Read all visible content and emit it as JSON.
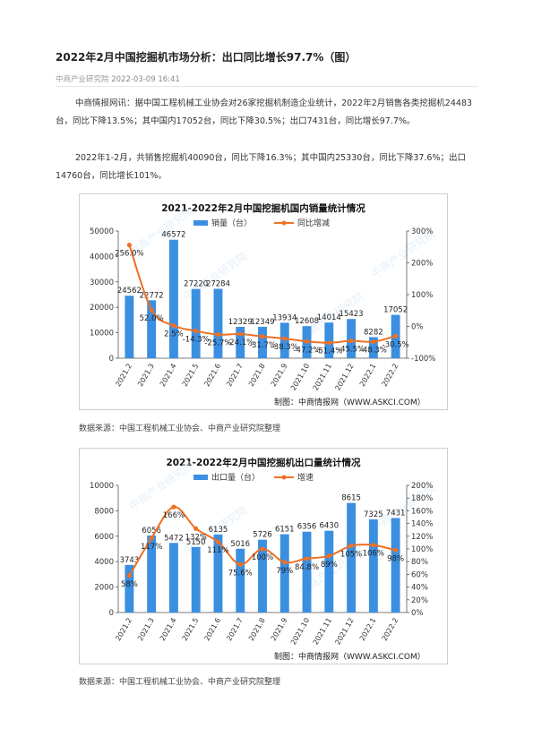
{
  "article": {
    "title": "2022年2月中国挖掘机市场分析：出口同比增长97.7%（图）",
    "source": "中商产业研究院",
    "datetime": "2022-03-09 16:41",
    "paragraphs": [
      "中商情报网讯：据中国工程机械工业协会对26家挖掘机制造企业统计，2022年2月销售各类挖掘机24483台，同比下降13.5%；其中国内17052台，同比下降30.5%；出口7431台，同比增长97.7%。",
      "2022年1-2月，共销售挖掘机40090台，同比下降16.3%；其中国内25330台，同比下降37.6%；出口14760台，同比增长101%。"
    ],
    "captions": [
      "数据来源：中国工程机械工业协会、中商产业研究院整理",
      "数据来源：中国工程机械工业协会、中商产业研究院整理"
    ]
  },
  "chart_data": [
    {
      "type": "bar",
      "title": "2021-2022年2月中国挖掘机国内销量统计情况",
      "categories": [
        "2021.2",
        "2021.3",
        "2021.4",
        "2021.5",
        "2021.6",
        "2021.7",
        "2021.8",
        "2021.9",
        "2021.10",
        "2021.11",
        "2021.12",
        "2022.1",
        "2022.2"
      ],
      "series": [
        {
          "name": "销量（台）",
          "kind": "bar",
          "axis": "left",
          "color": "#3b8fe0",
          "values": [
            24562,
            22772,
            46572,
            27220,
            27284,
            12329,
            12349,
            13934,
            12608,
            14014,
            15423,
            8282,
            17052
          ],
          "labels": [
            "24562",
            "22772",
            "46572",
            "27220",
            "27284",
            "12329",
            "12349",
            "13934",
            "12608",
            "14014",
            "15423",
            "8282",
            "17052"
          ]
        },
        {
          "name": "同比增减",
          "kind": "line",
          "axis": "right",
          "color": "#ef7024",
          "values": [
            256.0,
            52.0,
            2.5,
            -14.3,
            -25.7,
            -24.1,
            -31.7,
            -38.3,
            -47.2,
            -51.4,
            -45.5,
            -48.3,
            -30.5
          ],
          "labels": [
            "256.0%",
            "52.0%",
            "2.5%",
            "-14.3%",
            "-25.7%",
            "-24.1%",
            "-31.7%",
            "-38.3%",
            "-47.2%",
            "-51.4%",
            "-45.5%",
            "-48.3%",
            "-30.5%"
          ]
        }
      ],
      "yticks_left": [
        "0",
        "10000",
        "20000",
        "30000",
        "40000",
        "50000"
      ],
      "yticks_right": [
        "-100%",
        "0%",
        "100%",
        "200%",
        "300%"
      ],
      "ylim_left": [
        0,
        50000
      ],
      "ylim_right": [
        -100,
        300
      ],
      "legend": "top-center",
      "grid": false,
      "footer": "制图：中商情报网（WWW.ASKCI.COM）",
      "watermark": "中商产业研究院"
    },
    {
      "type": "bar",
      "title": "2021-2022年2月中国挖掘机出口量统计情况",
      "categories": [
        "2021.2",
        "2021.3",
        "2021.4",
        "2021.5",
        "2021.6",
        "2021.7",
        "2021.8",
        "2021.9",
        "2021.10",
        "2021.11",
        "2021.12",
        "2022.1",
        "2022.2"
      ],
      "series": [
        {
          "name": "出口量（台）",
          "kind": "bar",
          "axis": "left",
          "color": "#3b8fe0",
          "values": [
            3743,
            6056,
            5472,
            5150,
            6135,
            5016,
            5726,
            6151,
            6356,
            6430,
            8615,
            7325,
            7431
          ],
          "labels": [
            "3743",
            "6056",
            "5472",
            "5150",
            "6135",
            "5016",
            "5726",
            "6151",
            "6356",
            "6430",
            "8615",
            "7325",
            "7431"
          ]
        },
        {
          "name": "增速",
          "kind": "line",
          "axis": "right",
          "color": "#ef7024",
          "values": [
            58,
            117,
            166,
            132,
            111,
            75.6,
            100,
            79,
            84.8,
            89,
            105,
            106,
            98
          ],
          "labels": [
            "58%",
            "117%",
            "166%",
            "132%",
            "111%",
            "75.6%",
            "100%",
            "79%",
            "84.8%",
            "89%",
            "105%",
            "106%",
            "98%"
          ]
        }
      ],
      "yticks_left": [
        "0",
        "2000",
        "4000",
        "6000",
        "8000",
        "10000"
      ],
      "yticks_right": [
        "0%",
        "20%",
        "40%",
        "60%",
        "80%",
        "100%",
        "120%",
        "140%",
        "160%",
        "180%",
        "200%"
      ],
      "ylim_left": [
        0,
        10000
      ],
      "ylim_right": [
        0,
        200
      ],
      "legend": "top-center",
      "grid": false,
      "footer": "制图：中商情报网（WWW.ASKCI.COM）",
      "watermark": "中商产业研究院"
    }
  ]
}
